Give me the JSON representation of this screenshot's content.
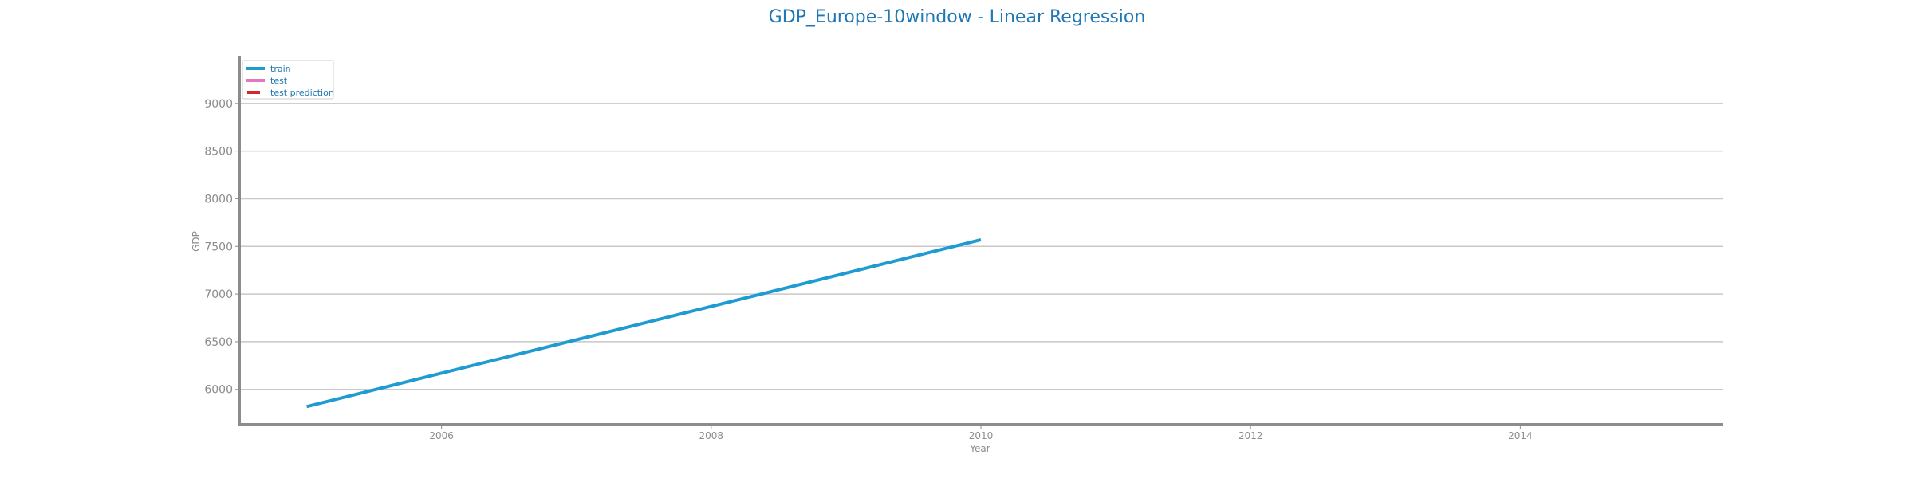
{
  "chart_data": {
    "type": "line",
    "title": "GDP_Europe-10window - Linear Regression",
    "xlabel": "Year",
    "ylabel": "GDP",
    "xlim": [
      2004.5,
      2015.5
    ],
    "ylim": [
      5630,
      9500
    ],
    "x_ticks": [
      2006,
      2008,
      2010,
      2012,
      2014
    ],
    "y_ticks": [
      6000,
      6500,
      7000,
      7500,
      8000,
      8500,
      9000
    ],
    "grid": "horizontal",
    "legend_position": "top-left",
    "series": [
      {
        "name": "train",
        "color": "#1f9bd1",
        "style": "solid",
        "x": [
          2005,
          2010
        ],
        "y": [
          5820,
          7570
        ]
      },
      {
        "name": "test",
        "color": "#e377c2",
        "style": "solid",
        "x": [],
        "y": []
      },
      {
        "name": "test prediction",
        "color": "#d62728",
        "style": "dashed",
        "x": [],
        "y": []
      }
    ]
  }
}
